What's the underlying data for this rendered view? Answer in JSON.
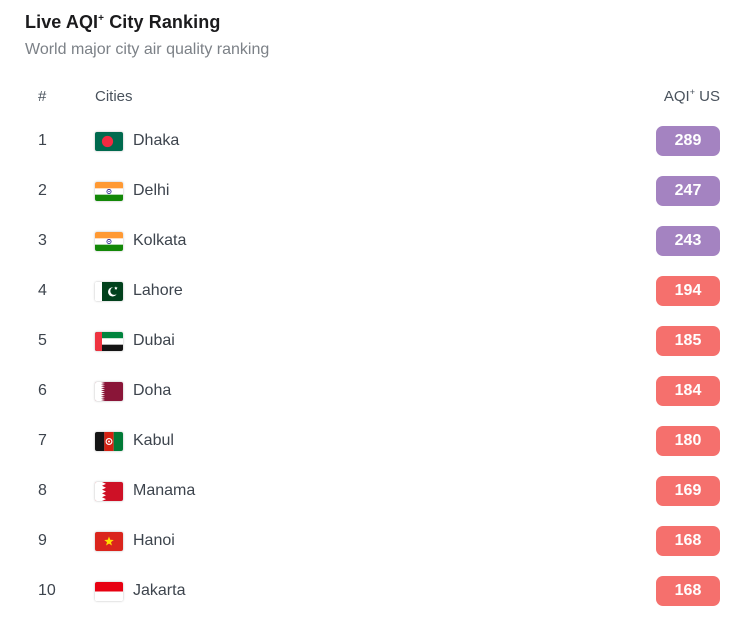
{
  "header": {
    "title_prefix": "Live AQI",
    "title_sup": "+",
    "title_suffix": " City Ranking",
    "subtitle": "World major city air quality ranking"
  },
  "table": {
    "columns": {
      "rank": "#",
      "cities": "Cities",
      "aqi_prefix": "AQI",
      "aqi_sup": "+",
      "aqi_suffix": " US"
    },
    "rows": [
      {
        "rank": "1",
        "city": "Dhaka",
        "flag": "bangladesh",
        "aqi": "289",
        "level": "very-unhealthy"
      },
      {
        "rank": "2",
        "city": "Delhi",
        "flag": "india",
        "aqi": "247",
        "level": "very-unhealthy"
      },
      {
        "rank": "3",
        "city": "Kolkata",
        "flag": "india",
        "aqi": "243",
        "level": "very-unhealthy"
      },
      {
        "rank": "4",
        "city": "Lahore",
        "flag": "pakistan",
        "aqi": "194",
        "level": "unhealthy"
      },
      {
        "rank": "5",
        "city": "Dubai",
        "flag": "uae",
        "aqi": "185",
        "level": "unhealthy"
      },
      {
        "rank": "6",
        "city": "Doha",
        "flag": "qatar",
        "aqi": "184",
        "level": "unhealthy"
      },
      {
        "rank": "7",
        "city": "Kabul",
        "flag": "afghanistan",
        "aqi": "180",
        "level": "unhealthy"
      },
      {
        "rank": "8",
        "city": "Manama",
        "flag": "bahrain",
        "aqi": "169",
        "level": "unhealthy"
      },
      {
        "rank": "9",
        "city": "Hanoi",
        "flag": "vietnam",
        "aqi": "168",
        "level": "unhealthy"
      },
      {
        "rank": "10",
        "city": "Jakarta",
        "flag": "indonesia",
        "aqi": "168",
        "level": "unhealthy"
      }
    ]
  },
  "colors": {
    "very_unhealthy_badge": "#a483c1",
    "unhealthy_badge": "#f5706d",
    "title_text": "#1b1b1d",
    "subtitle_text": "#7c8187",
    "cell_text": "#3d444d"
  }
}
